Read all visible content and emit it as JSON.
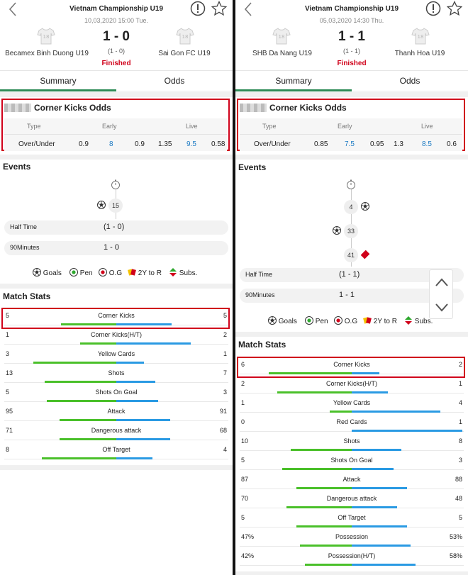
{
  "left": {
    "league": "Vietnam Championship U19",
    "date": "10,03,2020 15:00 Tue.",
    "home": "Becamex Binh Duong U19",
    "away": "Sai Gon FC U19",
    "score": "1 - 0",
    "ht_score": "(1 - 0)",
    "status": "Finished",
    "tabs": [
      "Summary",
      "Odds"
    ],
    "odds": {
      "title": "Corner Kicks Odds",
      "headers": {
        "type": "Type",
        "early": "Early",
        "live": "Live"
      },
      "row": {
        "type": "Over/Under",
        "e1": "0.9",
        "e2": "8",
        "e3": "0.9",
        "l1": "1.35",
        "l2": "9.5",
        "l3": "0.58"
      }
    },
    "events_title": "Events",
    "events": [
      {
        "minute": "15",
        "side": "home",
        "icon": "goal-icon"
      }
    ],
    "half_time": {
      "label": "Half Time",
      "value": "(1 - 0)"
    },
    "full_time": {
      "label": "90Minutes",
      "value": "1 - 0"
    },
    "legend": [
      "Goals",
      "Pen",
      "O.G",
      "2Y to R",
      "Subs."
    ],
    "stats_title": "Match Stats",
    "stats": [
      {
        "name": "Corner Kicks",
        "home": "5",
        "away": "5",
        "home_share": 0.5
      },
      {
        "name": "Corner Kicks(H/T)",
        "home": "1",
        "away": "2",
        "home_share": 0.33
      },
      {
        "name": "Yellow Cards",
        "home": "3",
        "away": "1",
        "home_share": 0.75
      },
      {
        "name": "Shots",
        "home": "13",
        "away": "7",
        "home_share": 0.65
      },
      {
        "name": "Shots On Goal",
        "home": "5",
        "away": "3",
        "home_share": 0.625
      },
      {
        "name": "Attack",
        "home": "95",
        "away": "91",
        "home_share": 0.51
      },
      {
        "name": "Dangerous attack",
        "home": "71",
        "away": "68",
        "home_share": 0.51
      },
      {
        "name": "Off Target",
        "home": "8",
        "away": "4",
        "home_share": 0.67
      }
    ]
  },
  "right": {
    "league": "Vietnam Championship U19",
    "date": "05,03,2020 14:30 Thu.",
    "home": "SHB Da Nang U19",
    "away": "Thanh Hoa U19",
    "score": "1 - 1",
    "ht_score": "(1 - 1)",
    "status": "Finished",
    "tabs": [
      "Summary",
      "Odds"
    ],
    "odds": {
      "title": "Corner Kicks Odds",
      "headers": {
        "type": "Type",
        "early": "Early",
        "live": "Live"
      },
      "row": {
        "type": "Over/Under",
        "e1": "0.85",
        "e2": "7.5",
        "e3": "0.95",
        "l1": "1.3",
        "l2": "8.5",
        "l3": "0.6"
      }
    },
    "events_title": "Events",
    "events": [
      {
        "minute": "4",
        "side": "away",
        "icon": "goal-icon"
      },
      {
        "minute": "33",
        "side": "home",
        "icon": "goal-icon"
      },
      {
        "minute": "41",
        "side": "away",
        "icon": "red-card-icon"
      }
    ],
    "half_time": {
      "label": "Half Time",
      "value": "(1 - 1)"
    },
    "full_time": {
      "label": "90Minutes",
      "value": "1 - 1"
    },
    "legend": [
      "Goals",
      "Pen",
      "O.G",
      "2Y to R",
      "Subs."
    ],
    "stats_title": "Match Stats",
    "stats": [
      {
        "name": "Corner Kicks",
        "home": "6",
        "away": "2",
        "home_share": 0.75
      },
      {
        "name": "Corner Kicks(H/T)",
        "home": "2",
        "away": "1",
        "home_share": 0.67
      },
      {
        "name": "Yellow Cards",
        "home": "1",
        "away": "4",
        "home_share": 0.2
      },
      {
        "name": "Red Cards",
        "home": "0",
        "away": "1",
        "home_share": 0.0
      },
      {
        "name": "Shots",
        "home": "10",
        "away": "8",
        "home_share": 0.55
      },
      {
        "name": "Shots On Goal",
        "home": "5",
        "away": "3",
        "home_share": 0.625
      },
      {
        "name": "Attack",
        "home": "87",
        "away": "88",
        "home_share": 0.5
      },
      {
        "name": "Dangerous attack",
        "home": "70",
        "away": "48",
        "home_share": 0.59
      },
      {
        "name": "Off Target",
        "home": "5",
        "away": "5",
        "home_share": 0.5
      },
      {
        "name": "Possession",
        "home": "47%",
        "away": "53%",
        "home_share": 0.47
      },
      {
        "name": "Possession(H/T)",
        "home": "42%",
        "away": "58%",
        "home_share": 0.42
      }
    ]
  },
  "colors": {
    "accent": "#2e8b57",
    "highlight": "#d0021b",
    "home_bar": "#4ac02a",
    "away_bar": "#2a9ae3",
    "link": "#1e7bc4"
  }
}
